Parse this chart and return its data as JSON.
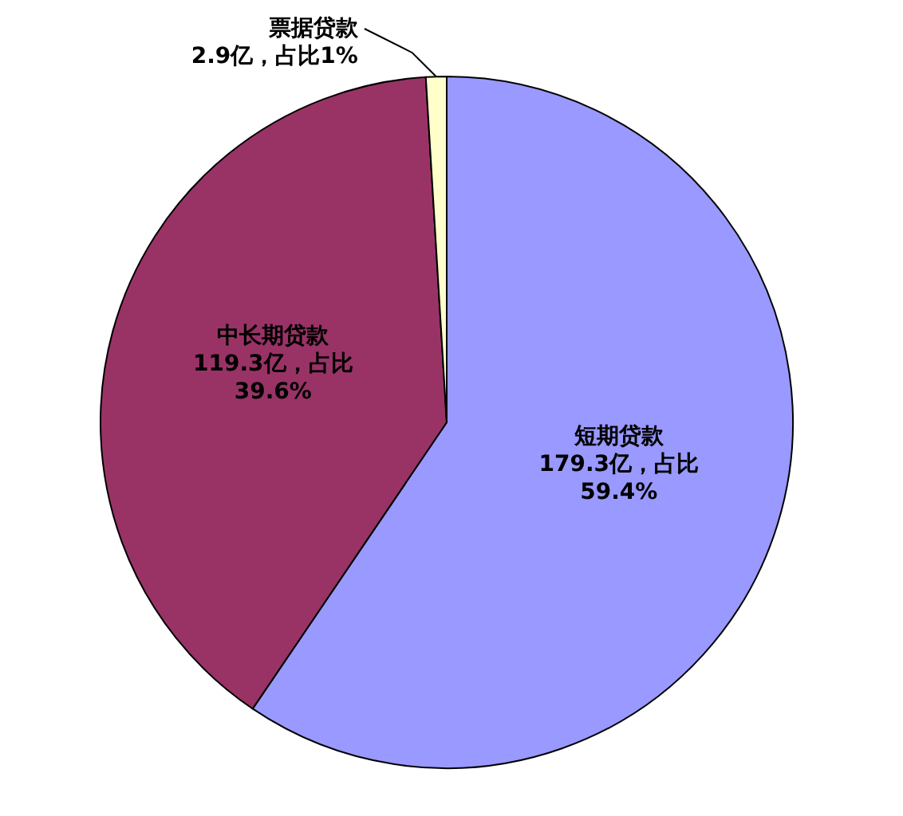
{
  "chart_data": {
    "type": "pie",
    "categories": [
      "短期贷款",
      "中长期贷款",
      "票据贷款"
    ],
    "values": [
      179.3,
      119.3,
      2.9
    ],
    "value_labels": [
      "179.3亿，占比59.4%",
      "119.3亿，占比39.6%",
      "2.9亿，占比1%"
    ],
    "colors": [
      "#9999ff",
      "#993366",
      "#ffffcc"
    ],
    "legend": false
  }
}
